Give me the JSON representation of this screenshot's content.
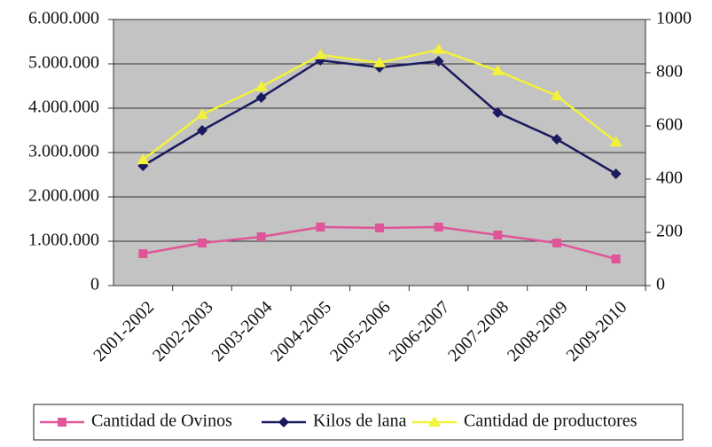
{
  "chart_data": {
    "type": "line",
    "categories": [
      "2001-2002",
      "2002-2003",
      "2003-2004",
      "2004-2005",
      "2005-2006",
      "2006-2007",
      "2007-2008",
      "2008-2009",
      "2009-2010"
    ],
    "series": [
      {
        "name": "Cantidad de Ovinos",
        "color": "#e0559a",
        "marker": "square",
        "axis": "y",
        "values": [
          720000,
          960000,
          1100000,
          1320000,
          1300000,
          1320000,
          1140000,
          960000,
          600000
        ]
      },
      {
        "name": "Kilos de lana",
        "color": "#1a1a5e",
        "marker": "diamond",
        "axis": "y",
        "values": [
          2700000,
          3500000,
          4240000,
          5080000,
          4920000,
          5060000,
          3900000,
          3300000,
          2520000
        ]
      },
      {
        "name": "Cantidad de productores",
        "color": "#f2f23a",
        "marker": "triangle",
        "axis": "y2",
        "values": [
          473,
          643,
          747,
          867,
          837,
          887,
          807,
          713,
          540
        ]
      }
    ],
    "ylim": [
      0,
      6000000
    ],
    "yticks": [
      0,
      {
        "value": 1000000,
        "label": "1.000.000"
      },
      {
        "value": 2000000,
        "label": "2.000.000"
      },
      {
        "value": 3000000,
        "label": "3.000.000"
      },
      {
        "value": 4000000,
        "label": "4.000.000"
      },
      {
        "value": 5000000,
        "label": "5.000.000"
      },
      {
        "value": 6000000,
        "label": "6.000.000"
      }
    ],
    "y2lim": [
      0,
      1000
    ],
    "y2ticks": [
      0,
      200,
      400,
      600,
      800,
      1000
    ],
    "grid": true,
    "legend": "bottom"
  }
}
